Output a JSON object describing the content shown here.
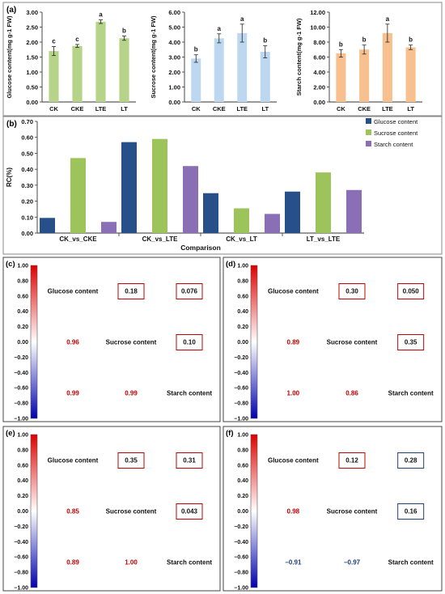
{
  "colors": {
    "bar_glucose_a": "#b5d48a",
    "bar_sucrose_a": "#bcd7ef",
    "bar_starch_a": "#f7c08e",
    "rc_glucose": "#27508b",
    "rc_sucrose": "#9cc45a",
    "rc_starch": "#8b6fb6",
    "positive": "#c00000",
    "negative": "#203f7a",
    "box_red": "#c00000",
    "box_blue": "#203f7a"
  },
  "panel_a": {
    "label": "(a)",
    "categories": [
      "CK",
      "CKE",
      "LTE",
      "LT"
    ],
    "charts": [
      {
        "ylabel": "Glucose content(mg g-1 FW)",
        "ylim": [
          0,
          3
        ],
        "ticks": [
          "0.00",
          "0.50",
          "1.00",
          "1.50",
          "2.00",
          "2.50",
          "3.00"
        ],
        "tick_values": [
          0,
          0.5,
          1,
          1.5,
          2,
          2.5,
          3
        ],
        "values": [
          1.7,
          1.87,
          2.68,
          2.13
        ],
        "errors": [
          0.15,
          0.05,
          0.06,
          0.07
        ],
        "letters": [
          "c",
          "c",
          "a",
          "b"
        ],
        "color_key": "bar_glucose_a"
      },
      {
        "ylabel": "Sucrose content(mg g-1 FW)",
        "ylim": [
          0,
          6
        ],
        "ticks": [
          "0.00",
          "1.00",
          "2.00",
          "3.00",
          "4.00",
          "5.00",
          "6.00"
        ],
        "tick_values": [
          0,
          1,
          2,
          3,
          4,
          5,
          6
        ],
        "values": [
          2.9,
          4.25,
          4.6,
          3.35
        ],
        "errors": [
          0.25,
          0.3,
          0.6,
          0.4
        ],
        "letters": [
          "b",
          "a",
          "a",
          "b"
        ],
        "color_key": "bar_sucrose_a"
      },
      {
        "ylabel": "Starch content(mg g-1 FW)",
        "ylim": [
          0,
          12
        ],
        "ticks": [
          "0.00",
          "2.00",
          "4.00",
          "6.00",
          "8.00",
          "10.00",
          "12.00"
        ],
        "tick_values": [
          0,
          2,
          4,
          6,
          8,
          10,
          12
        ],
        "values": [
          6.5,
          7.0,
          9.2,
          7.3
        ],
        "errors": [
          0.5,
          0.6,
          1.2,
          0.3
        ],
        "letters": [
          "b",
          "b",
          "a",
          "b"
        ],
        "color_key": "bar_starch_a"
      }
    ]
  },
  "chart_data": [
    {
      "type": "bar",
      "panel": "(a)",
      "categories": [
        "CK",
        "CKE",
        "LTE",
        "LT"
      ],
      "ylabel": "Glucose content(mg g-1 FW)",
      "ylim": [
        0,
        3
      ],
      "values": [
        1.7,
        1.87,
        2.68,
        2.13
      ],
      "significance": [
        "c",
        "c",
        "a",
        "b"
      ]
    },
    {
      "type": "bar",
      "panel": "(a)",
      "categories": [
        "CK",
        "CKE",
        "LTE",
        "LT"
      ],
      "ylabel": "Sucrose content(mg g-1 FW)",
      "ylim": [
        0,
        6
      ],
      "values": [
        2.9,
        4.25,
        4.6,
        3.35
      ],
      "significance": [
        "b",
        "a",
        "a",
        "b"
      ]
    },
    {
      "type": "bar",
      "panel": "(a)",
      "categories": [
        "CK",
        "CKE",
        "LTE",
        "LT"
      ],
      "ylabel": "Starch content(mg g-1 FW)",
      "ylim": [
        0,
        12
      ],
      "values": [
        6.5,
        7.0,
        9.2,
        7.3
      ],
      "significance": [
        "b",
        "b",
        "a",
        "b"
      ]
    },
    {
      "type": "bar",
      "panel": "(b)",
      "categories": [
        "CK_vs_CKE",
        "CK_vs_LTE",
        "CK_vs_LT",
        "LT_vs_LTE"
      ],
      "xlabel": "Comparison",
      "ylabel": "RC(%)",
      "ylim": [
        0,
        0.7
      ],
      "legend": "right",
      "series": [
        {
          "name": "Glucose content",
          "values": [
            0.095,
            0.57,
            0.25,
            0.26
          ]
        },
        {
          "name": "Sucrose content",
          "values": [
            0.47,
            0.59,
            0.155,
            0.38
          ]
        },
        {
          "name": "Starch content",
          "values": [
            0.07,
            0.42,
            0.12,
            0.27
          ]
        }
      ]
    },
    {
      "type": "heatmap",
      "panel": "(c)",
      "variables": [
        "Glucose content",
        "Sucrose content",
        "Starch content"
      ],
      "upper": [
        [
          "Glucose content",
          "Sucrose content",
          "0.18"
        ],
        [
          "Glucose content",
          "Starch content",
          "0.076"
        ],
        [
          "Sucrose content",
          "Starch content",
          "0.10"
        ]
      ],
      "lower": [
        [
          "Sucrose content",
          "Glucose content",
          "0.96"
        ],
        [
          "Starch content",
          "Glucose content",
          "0.99"
        ],
        [
          "Starch content",
          "Sucrose content",
          "0.99"
        ]
      ],
      "colorbar": [
        -1,
        1
      ]
    },
    {
      "type": "heatmap",
      "panel": "(d)",
      "variables": [
        "Glucose content",
        "Sucrose content",
        "Starch content"
      ],
      "upper": [
        [
          "Glucose content",
          "Sucrose content",
          "0.30"
        ],
        [
          "Glucose content",
          "Starch content",
          "0.050"
        ],
        [
          "Sucrose content",
          "Starch content",
          "0.35"
        ]
      ],
      "lower": [
        [
          "Sucrose content",
          "Glucose content",
          "0.89"
        ],
        [
          "Starch content",
          "Glucose content",
          "1.00"
        ],
        [
          "Starch content",
          "Sucrose content",
          "0.86"
        ]
      ],
      "colorbar": [
        -1,
        1
      ]
    },
    {
      "type": "heatmap",
      "panel": "(e)",
      "variables": [
        "Glucose content",
        "Sucrose content",
        "Starch content"
      ],
      "upper": [
        [
          "Glucose content",
          "Sucrose content",
          "0.35"
        ],
        [
          "Glucose content",
          "Starch content",
          "0.31"
        ],
        [
          "Sucrose content",
          "Starch content",
          "0.043"
        ]
      ],
      "lower": [
        [
          "Sucrose content",
          "Glucose content",
          "0.85"
        ],
        [
          "Starch content",
          "Glucose content",
          "0.89"
        ],
        [
          "Starch content",
          "Sucrose content",
          "1.00"
        ]
      ],
      "colorbar": [
        -1,
        1
      ]
    },
    {
      "type": "heatmap",
      "panel": "(f)",
      "variables": [
        "Glucose content",
        "Sucrose content",
        "Starch content"
      ],
      "upper": [
        [
          "Glucose content",
          "Sucrose content",
          "0.12"
        ],
        [
          "Glucose content",
          "Starch content",
          "0.28"
        ],
        [
          "Sucrose content",
          "Starch content",
          "0.16"
        ]
      ],
      "lower": [
        [
          "Sucrose content",
          "Glucose content",
          "0.98"
        ],
        [
          "Starch content",
          "Glucose content",
          "-0.91"
        ],
        [
          "Starch content",
          "Sucrose content",
          "-0.97"
        ]
      ],
      "colorbar": [
        -1,
        1
      ]
    }
  ],
  "panel_b": {
    "label": "(b)",
    "ylabel": "RC(%)",
    "xlabel": "Comparison",
    "ylim": [
      0,
      0.7
    ],
    "ticks": [
      "0.00",
      "0.10",
      "0.20",
      "0.30",
      "0.40",
      "0.50",
      "0.60",
      "0.70"
    ],
    "tick_values": [
      0,
      0.1,
      0.2,
      0.3,
      0.4,
      0.5,
      0.6,
      0.7
    ],
    "categories": [
      "CK_vs_CKE",
      "CK_vs_LTE",
      "CK_vs_LT",
      "LT_vs_LTE"
    ],
    "series": [
      {
        "name": "Glucose content",
        "values": [
          0.095,
          0.57,
          0.25,
          0.26
        ],
        "color_key": "rc_glucose"
      },
      {
        "name": "Sucrose content",
        "values": [
          0.47,
          0.59,
          0.155,
          0.38
        ],
        "color_key": "rc_sucrose"
      },
      {
        "name": "Starch content",
        "values": [
          0.07,
          0.42,
          0.12,
          0.27
        ],
        "color_key": "rc_starch"
      }
    ]
  },
  "colorbar_ticks": [
    "1.00",
    "0.80",
    "0.60",
    "0.40",
    "0.20",
    "0.00",
    "−0.20",
    "−0.40",
    "−0.60",
    "−0.80",
    "−1.00"
  ],
  "corr_labels": [
    "Glucose content",
    "Sucrose content",
    "Starch content"
  ],
  "corr_panels": [
    {
      "label": "(c)",
      "upper": [
        {
          "text": "0.18",
          "box": "box_red"
        },
        {
          "text": "0.076",
          "box": "box_red"
        },
        {
          "text": "0.10",
          "box": "box_red"
        }
      ],
      "lower": [
        {
          "text": "0.96",
          "sign": "positive"
        },
        {
          "text": "0.99",
          "sign": "positive"
        },
        {
          "text": "0.99",
          "sign": "positive"
        }
      ]
    },
    {
      "label": "(d)",
      "upper": [
        {
          "text": "0.30",
          "box": "box_red"
        },
        {
          "text": "0.050",
          "box": "box_red"
        },
        {
          "text": "0.35",
          "box": "box_red"
        }
      ],
      "lower": [
        {
          "text": "0.89",
          "sign": "positive"
        },
        {
          "text": "1.00",
          "sign": "positive"
        },
        {
          "text": "0.86",
          "sign": "positive"
        }
      ]
    },
    {
      "label": "(e)",
      "upper": [
        {
          "text": "0.35",
          "box": "box_red"
        },
        {
          "text": "0.31",
          "box": "box_red"
        },
        {
          "text": "0.043",
          "box": "box_red"
        }
      ],
      "lower": [
        {
          "text": "0.85",
          "sign": "positive"
        },
        {
          "text": "0.89",
          "sign": "positive"
        },
        {
          "text": "1.00",
          "sign": "positive"
        }
      ]
    },
    {
      "label": "(f)",
      "upper": [
        {
          "text": "0.12",
          "box": "box_red"
        },
        {
          "text": "0.28",
          "box": "box_blue"
        },
        {
          "text": "0.16",
          "box": "box_blue"
        }
      ],
      "lower": [
        {
          "text": "0.98",
          "sign": "positive"
        },
        {
          "text": "−0.91",
          "sign": "negative"
        },
        {
          "text": "−0.97",
          "sign": "negative"
        }
      ]
    }
  ]
}
